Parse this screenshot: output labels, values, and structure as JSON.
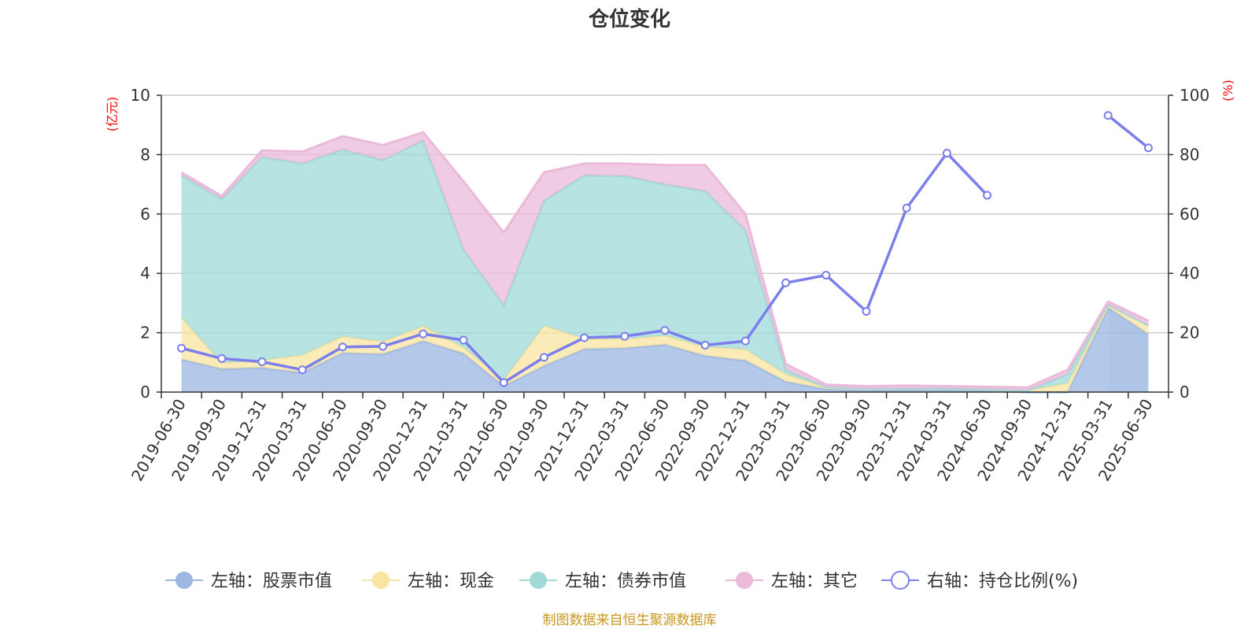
{
  "chart_data": {
    "type": "area",
    "title": "仓位变化",
    "left_axis": {
      "unit": "(亿元)",
      "ylim": [
        0,
        10
      ],
      "ticks": [
        "0",
        "2",
        "4",
        "6",
        "8",
        "10"
      ]
    },
    "right_axis": {
      "unit": "(%)",
      "ylim": [
        0,
        100
      ],
      "ticks": [
        "0",
        "20",
        "40",
        "60",
        "80",
        "100"
      ]
    },
    "categories": [
      "2019-06-30",
      "2019-09-30",
      "2019-12-31",
      "2020-03-31",
      "2020-06-30",
      "2020-09-30",
      "2020-12-31",
      "2021-03-31",
      "2021-06-30",
      "2021-09-30",
      "2021-12-31",
      "2022-03-31",
      "2022-06-30",
      "2022-09-30",
      "2022-12-31",
      "2023-03-31",
      "2023-06-30",
      "2023-09-30",
      "2023-12-31",
      "2024-03-31",
      "2024-06-30",
      "2024-09-30",
      "2024-12-31",
      "2025-03-31",
      "2025-06-30"
    ],
    "grid": true,
    "legend_position": "bottom",
    "series": [
      {
        "name": "左轴：股票市值",
        "axis": "left",
        "color": "#9bb7e2",
        "values": [
          1.1,
          0.78,
          0.82,
          0.65,
          1.32,
          1.28,
          1.72,
          1.3,
          0.2,
          0.88,
          1.45,
          1.48,
          1.6,
          1.22,
          1.06,
          0.35,
          0.1,
          0.06,
          0.07,
          0.07,
          0.05,
          0.0,
          0.0,
          2.85,
          1.95
        ]
      },
      {
        "name": "左轴：现金",
        "axis": "left",
        "color": "#f9e4a2",
        "values": [
          1.4,
          0.2,
          0.25,
          0.6,
          0.55,
          0.42,
          0.5,
          0.2,
          0.22,
          1.35,
          0.35,
          0.3,
          0.3,
          0.3,
          0.38,
          0.25,
          0.05,
          0.05,
          0.05,
          0.05,
          0.05,
          0.05,
          0.3,
          0.05,
          0.3
        ]
      },
      {
        "name": "左轴：债券市值",
        "axis": "left",
        "color": "#9fdad9",
        "values": [
          4.8,
          5.52,
          6.85,
          6.45,
          6.3,
          6.12,
          6.25,
          3.3,
          2.5,
          4.22,
          5.5,
          5.5,
          5.1,
          5.25,
          4.0,
          0.15,
          0.02,
          0.0,
          0.0,
          0.0,
          0.0,
          0.0,
          0.3,
          0.05,
          0.0
        ]
      },
      {
        "name": "左轴：其它",
        "axis": "left",
        "color": "#ebbadb",
        "values": [
          0.1,
          0.1,
          0.22,
          0.4,
          0.45,
          0.5,
          0.28,
          2.3,
          2.45,
          0.95,
          0.4,
          0.42,
          0.65,
          0.88,
          0.55,
          0.2,
          0.08,
          0.09,
          0.1,
          0.08,
          0.08,
          0.1,
          0.15,
          0.1,
          0.15
        ]
      },
      {
        "name": "右轴：持仓比例(%)",
        "axis": "right",
        "color": "#7b7fec",
        "type": "line",
        "values": [
          14.8,
          11.3,
          10.2,
          7.5,
          15.2,
          15.4,
          19.6,
          17.5,
          3.2,
          11.7,
          18.3,
          18.8,
          20.8,
          15.8,
          17.2,
          36.8,
          39.4,
          27.2,
          62.0,
          80.5,
          66.3,
          null,
          null,
          93.2,
          82.3
        ]
      }
    ],
    "source": "制图数据来自恒生聚源数据库"
  }
}
